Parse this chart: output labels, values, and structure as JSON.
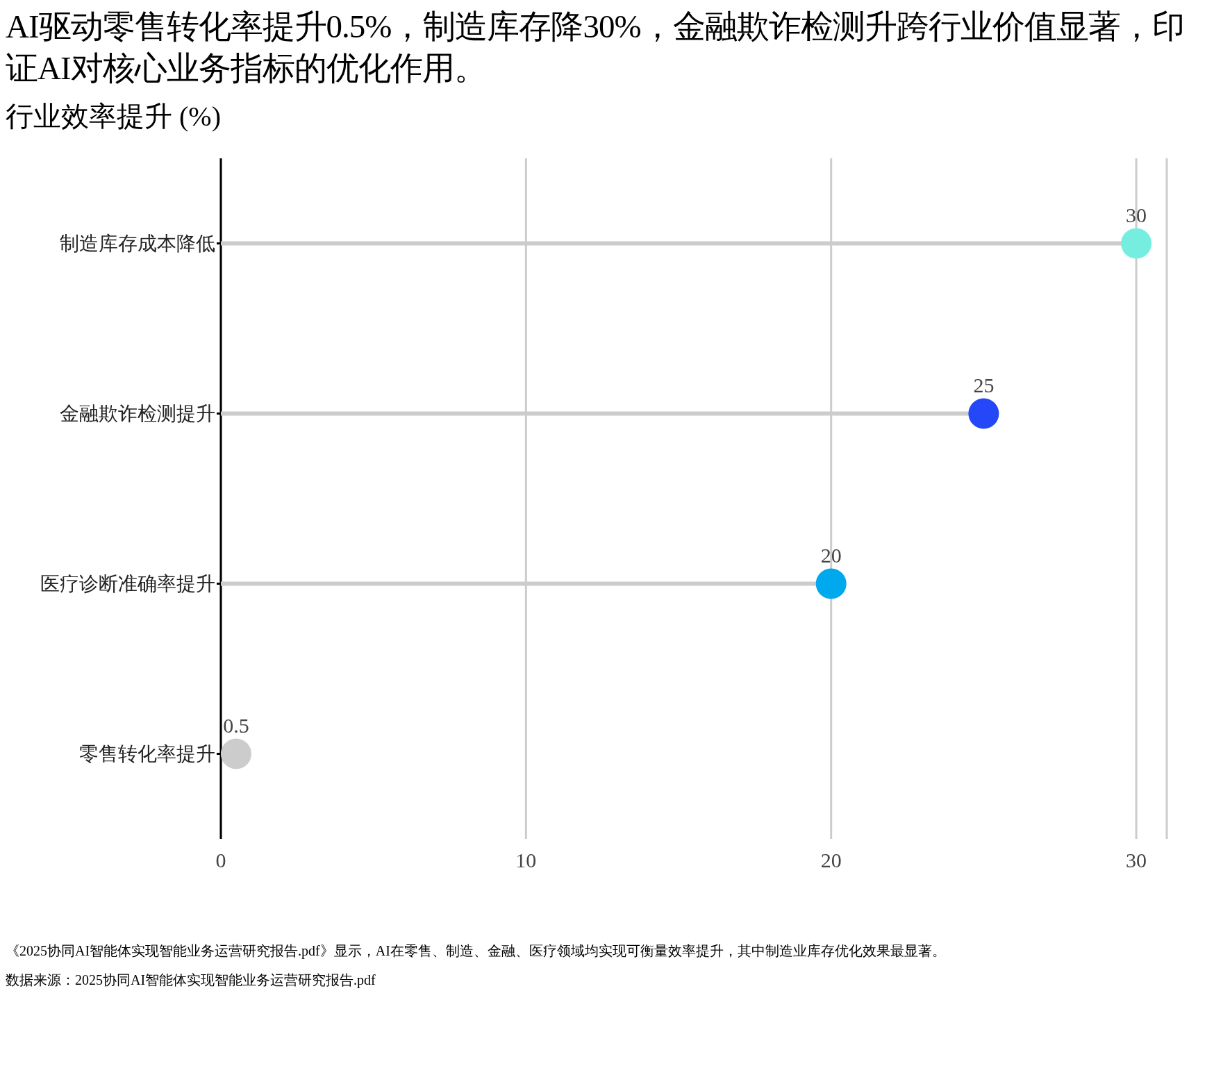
{
  "chart_data": {
    "type": "lollipop",
    "orientation": "horizontal",
    "title": "AI驱动零售转化率提升0.5%，制造库存降30%，金融欺诈检测升跨行业价值显著，印证AI对核心业务指标的优化作用。",
    "subtitle": "行业效率提升 (%)",
    "categories": [
      "制造库存成本降低",
      "金融欺诈检测提升",
      "医疗诊断准确率提升",
      "零售转化率提升"
    ],
    "values": [
      30,
      25,
      20,
      0.5
    ],
    "colors": [
      "#76eedf",
      "#2448f8",
      "#00a8ee",
      "#cccccc"
    ],
    "xlim": [
      0,
      31
    ],
    "xticks": [
      0,
      10,
      20,
      30
    ],
    "grid": "x",
    "data_labels": true,
    "legend": false,
    "annotations": [
      "《2025协同AI智能体实现智能业务运营研究报告.pdf》显示，AI在零售、制造、金融、医疗领域均实现可衡量效率提升，其中制造业库存优化效果最显著。",
      "数据来源：2025协同AI智能体实现智能业务运营研究报告.pdf"
    ]
  }
}
